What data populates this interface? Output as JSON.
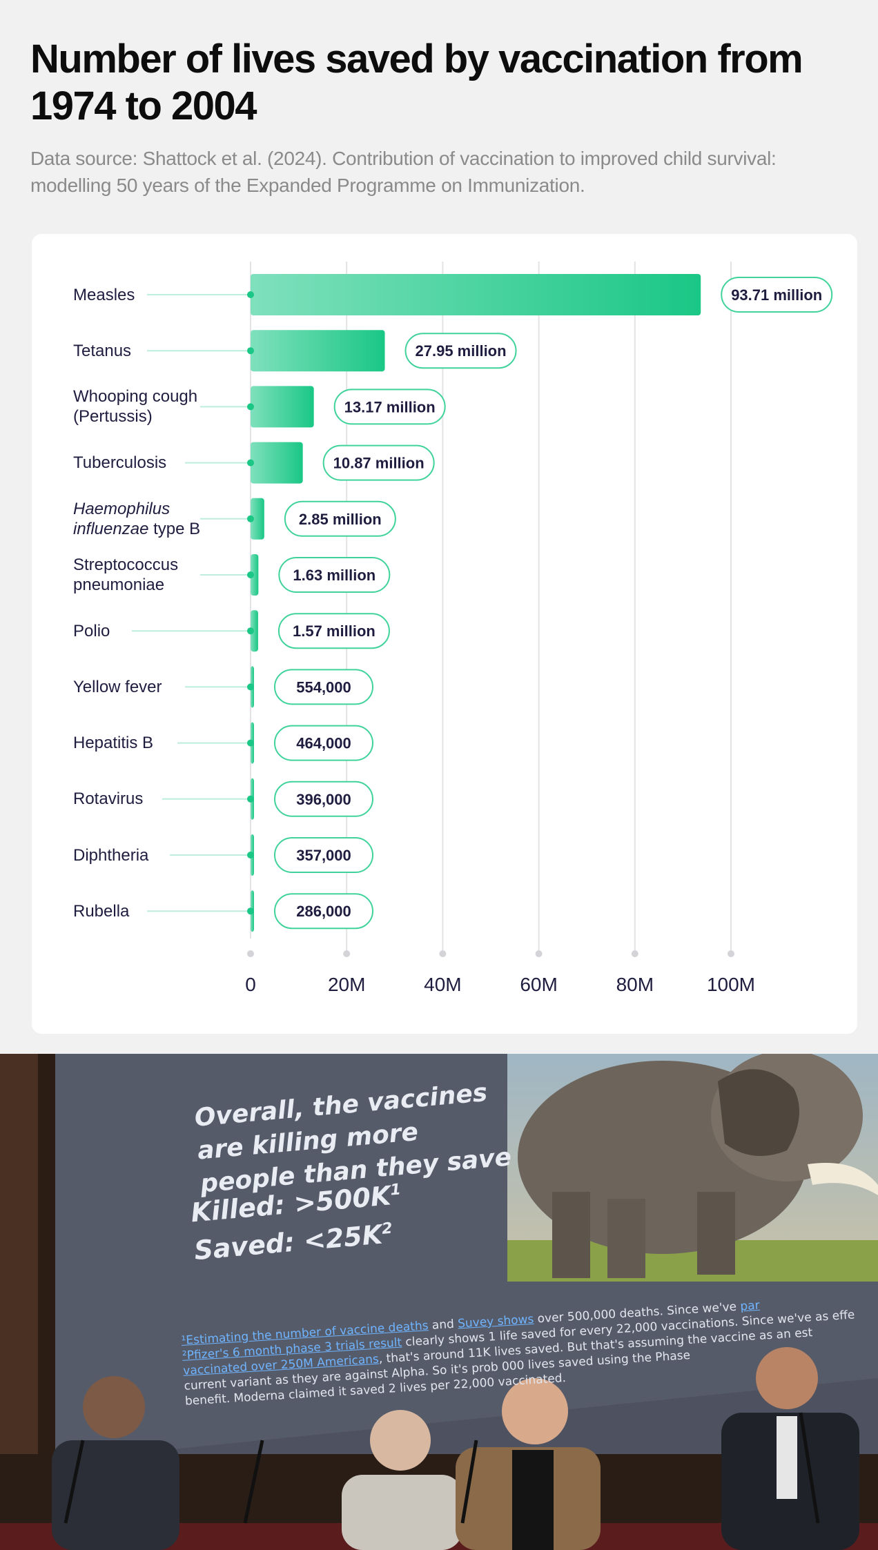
{
  "header": {
    "title": "Number of lives saved by vaccination from 1974 to 2004",
    "source": "Data source: Shattock et al. (2024). Contribution of vaccination to improved child survival: modelling 50 years of the Expanded Programme on Immunization."
  },
  "chart_data": {
    "type": "bar",
    "orientation": "horizontal",
    "title": "Number of lives saved by vaccination from 1974 to 2004",
    "xlim": [
      0,
      100000000
    ],
    "x_ticks": [
      "0",
      "20M",
      "40M",
      "60M",
      "80M",
      "100M"
    ],
    "x_tick_values": [
      0,
      20000000,
      40000000,
      60000000,
      80000000,
      100000000
    ],
    "grid": true,
    "categories": [
      {
        "label": "Measles",
        "value": 93710000,
        "data_label": "93.71 million"
      },
      {
        "label": "Tetanus",
        "value": 27950000,
        "data_label": "27.95 million"
      },
      {
        "label": "Whooping cough (Pertussis)",
        "label_lines": [
          "Whooping cough",
          "(Pertussis)"
        ],
        "value": 13170000,
        "data_label": "13.17 million"
      },
      {
        "label": "Tuberculosis",
        "value": 10870000,
        "data_label": "10.87 million"
      },
      {
        "label": "Haemophilus influenzae type B",
        "label_lines": [
          "Haemophilus",
          "influenzae type B"
        ],
        "value": 2850000,
        "data_label": "2.85 million"
      },
      {
        "label": "Streptococcus pneumoniae",
        "label_lines": [
          "Streptococcus",
          "pneumoniae"
        ],
        "value": 1630000,
        "data_label": "1.63 million"
      },
      {
        "label": "Polio",
        "value": 1570000,
        "data_label": "1.57 million"
      },
      {
        "label": "Yellow fever",
        "value": 554000,
        "data_label": "554,000"
      },
      {
        "label": "Hepatitis B",
        "value": 464000,
        "data_label": "464,000"
      },
      {
        "label": "Rotavirus",
        "value": 396000,
        "data_label": "396,000"
      },
      {
        "label": "Diphtheria",
        "value": 357000,
        "data_label": "357,000"
      },
      {
        "label": "Rubella",
        "value": 286000,
        "data_label": "286,000"
      }
    ],
    "colors": {
      "bar_light": "#7fe0bd",
      "bar_dark": "#1ac785",
      "pill_border": "#3fd39b",
      "label_text": "#1f1d3f",
      "grid": "#e3e3e6"
    }
  },
  "photo": {
    "slide": {
      "heading": "Overall, the vaccines are killing more people than they save",
      "killed_label": "Killed:",
      "killed_value": ">500K",
      "killed_note": "1",
      "saved_label": "Saved:",
      "saved_value": "<25K",
      "saved_note": "2",
      "footnote_line1_link1": "¹Estimating the number of vaccine deaths",
      "footnote_line1_mid": " and ",
      "footnote_line1_link2": "Suvey shows",
      "footnote_line1_rest": " over 500,000 deaths.",
      "footnote_line1_tail": " Since we've ",
      "footnote_line1_link3": "par",
      "footnote_line2_link": "²Pfizer's 6 month phase 3 trials result",
      "footnote_line2_rest": " clearly shows 1 life saved for every 22,000 vaccinations. Since we've as effe",
      "footnote_line3_link": "vaccinated over 250M Americans",
      "footnote_line3_rest": ", that's around 11K lives saved. But that's assuming the vaccine as an est",
      "footnote_line4": "current variant as they are against Alpha. So it's prob  000 lives saved using the Phase",
      "footnote_line5": "benefit. Moderna claimed it saved 2 lives per 22,000 vaccinated."
    }
  }
}
